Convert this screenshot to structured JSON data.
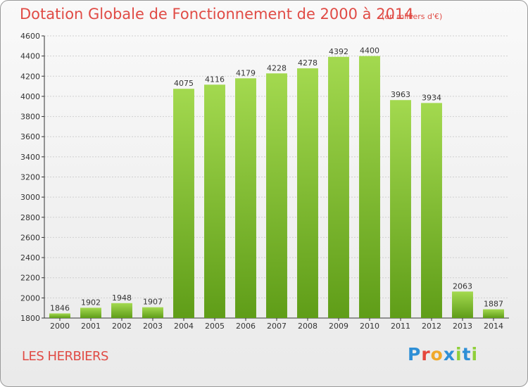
{
  "title": "Dotation Globale de Fonctionnement de 2000 à 2014",
  "subtitle": "(en milliers d'€)",
  "commune": "LES HERBIERS",
  "logo": {
    "text": "Proxiti",
    "colors": [
      "#2e8fd6",
      "#e5453b",
      "#f0a92b",
      "#2e8fd6",
      "#8fcf3a",
      "#2e8fd6",
      "#8fcf3a"
    ]
  },
  "colors": {
    "bar_top": "#a3d94f",
    "bar_bottom": "#5f9d18",
    "title": "#e04b45",
    "axis": "#333333",
    "grid": "#cfcfcf"
  },
  "chart_data": {
    "type": "bar",
    "categories": [
      "2000",
      "2001",
      "2002",
      "2003",
      "2004",
      "2005",
      "2006",
      "2007",
      "2008",
      "2009",
      "2010",
      "2011",
      "2012",
      "2013",
      "2014"
    ],
    "values": [
      1846,
      1902,
      1948,
      1907,
      4075,
      4116,
      4179,
      4228,
      4278,
      4392,
      4400,
      3963,
      3934,
      2063,
      1887
    ],
    "ylim": [
      1800,
      4600
    ],
    "yticks": [
      1800,
      2000,
      2200,
      2400,
      2600,
      2800,
      3000,
      3200,
      3400,
      3600,
      3800,
      4000,
      4200,
      4400,
      4600
    ],
    "grid": true,
    "data_labels": true
  }
}
